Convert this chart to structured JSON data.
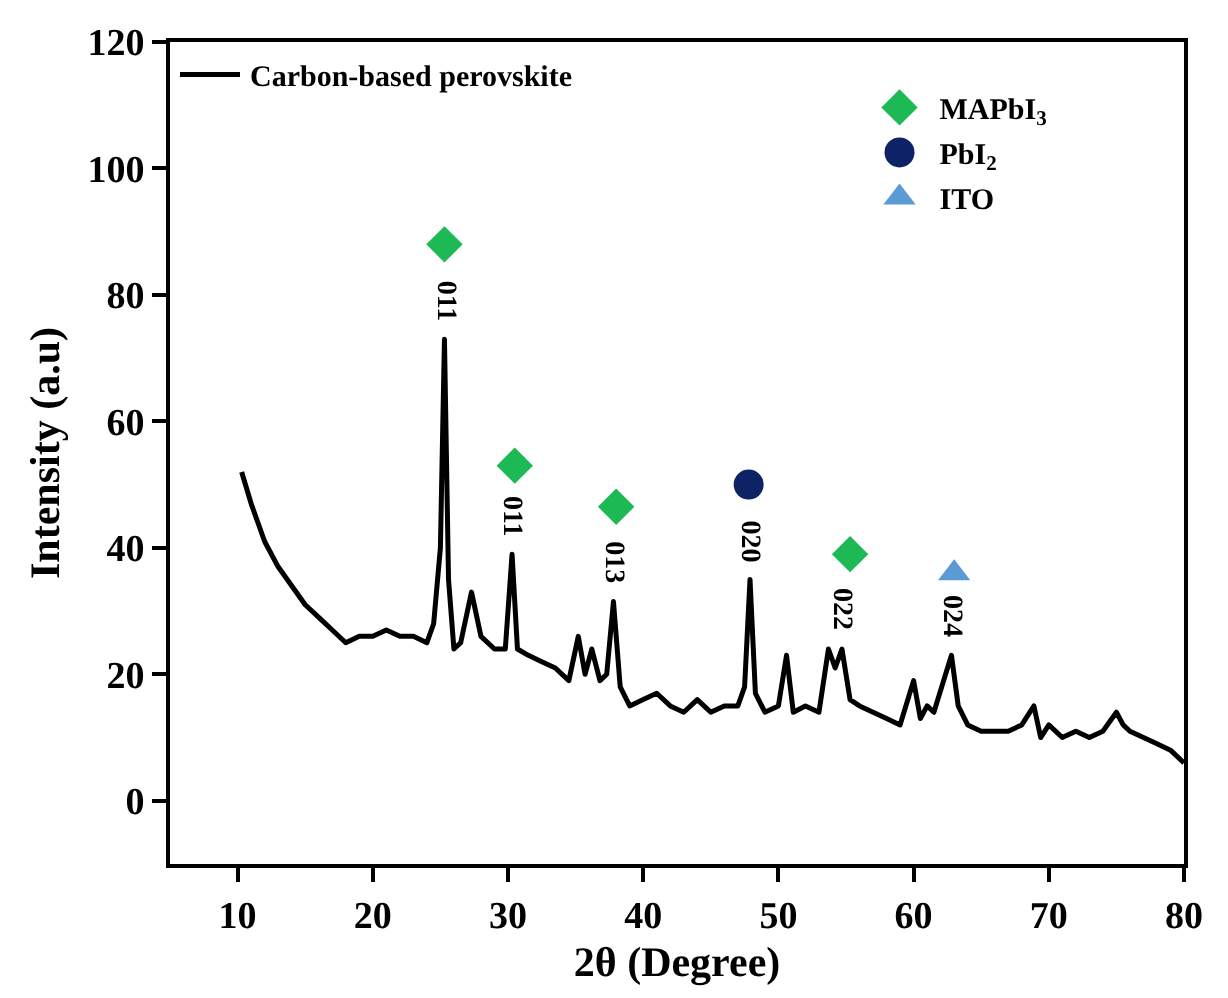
{
  "chart_data": {
    "type": "line",
    "xlabel": "2θ (Degree)",
    "ylabel": "Intensity (a.u)",
    "xlim": [
      5,
      80
    ],
    "xticks": [
      10,
      20,
      30,
      40,
      50,
      60,
      70,
      80
    ],
    "ylim": [
      -10,
      120
    ],
    "yticks": [
      0,
      20,
      40,
      60,
      80,
      100,
      120
    ],
    "legend": "top",
    "series": [
      {
        "name": "Carbon-based perovskite",
        "color": "#000000",
        "marker": "none",
        "x": [
          10.3,
          11,
          12,
          13,
          14,
          15,
          16,
          17,
          18,
          19,
          20,
          21,
          22,
          23,
          24,
          24.5,
          25,
          25.3,
          25.6,
          26,
          26.5,
          27.3,
          28,
          29,
          29.8,
          30.3,
          30.7,
          31.5,
          32.5,
          33.5,
          34.5,
          35.2,
          35.7,
          36.2,
          36.8,
          37.3,
          37.8,
          38.3,
          39,
          40,
          41,
          42,
          43,
          44,
          45,
          46,
          47,
          47.5,
          47.9,
          48.3,
          49,
          50,
          50.6,
          51.1,
          52,
          53,
          53.7,
          54.2,
          54.7,
          55.3,
          56,
          57,
          58,
          59,
          60,
          60.5,
          61,
          61.5,
          62.8,
          63.3,
          64,
          65,
          66,
          67,
          68,
          68.9,
          69.4,
          70,
          71,
          72,
          73,
          74,
          75,
          75.5,
          76,
          77,
          78,
          79,
          80
        ],
        "values": [
          52,
          47,
          41,
          37,
          34,
          31,
          29,
          27,
          25,
          26,
          26,
          27,
          26,
          26,
          25,
          28,
          40,
          73,
          35,
          24,
          25,
          33,
          26,
          24,
          24,
          39,
          24,
          23,
          22,
          21,
          19,
          26,
          20,
          24,
          19,
          20,
          31.5,
          18,
          15,
          16,
          17,
          15,
          14,
          16,
          14,
          15,
          15,
          18,
          35,
          17,
          14,
          15,
          23,
          14,
          15,
          14,
          24,
          21,
          24,
          16,
          15,
          14,
          13,
          12,
          19,
          13,
          15,
          14,
          23,
          15,
          12,
          11,
          11,
          11,
          12,
          15,
          10,
          12,
          10,
          11,
          10,
          11,
          14,
          12,
          11,
          10,
          9,
          8,
          6
        ]
      },
      {
        "name": "MAPbI$_{3}$",
        "type": "scatter",
        "color": "#1db954",
        "marker": "diamond",
        "x": [
          25.3,
          30.5,
          38,
          55.3
        ],
        "values": [
          88,
          53,
          46.5,
          39
        ]
      },
      {
        "name": "PbI$_{2}$",
        "type": "scatter",
        "color": "#0d2366",
        "marker": "circle",
        "x": [
          47.8
        ],
        "values": [
          50
        ]
      },
      {
        "name": "ITO",
        "type": "scatter",
        "color": "#5b9bd5",
        "marker": "triangle",
        "x": [
          63
        ],
        "values": [
          36
        ]
      }
    ],
    "annotations": [
      {
        "text": "011",
        "x": 25.3,
        "y": 73
      },
      {
        "text": "011",
        "x": 30.3,
        "y": 39
      },
      {
        "text": "013",
        "x": 37.8,
        "y": 31.5
      },
      {
        "text": "020",
        "x": 47.9,
        "y": 35
      },
      {
        "text": "022",
        "x": 54.7,
        "y": 24
      },
      {
        "text": "024",
        "x": 62.8,
        "y": 23
      }
    ]
  }
}
